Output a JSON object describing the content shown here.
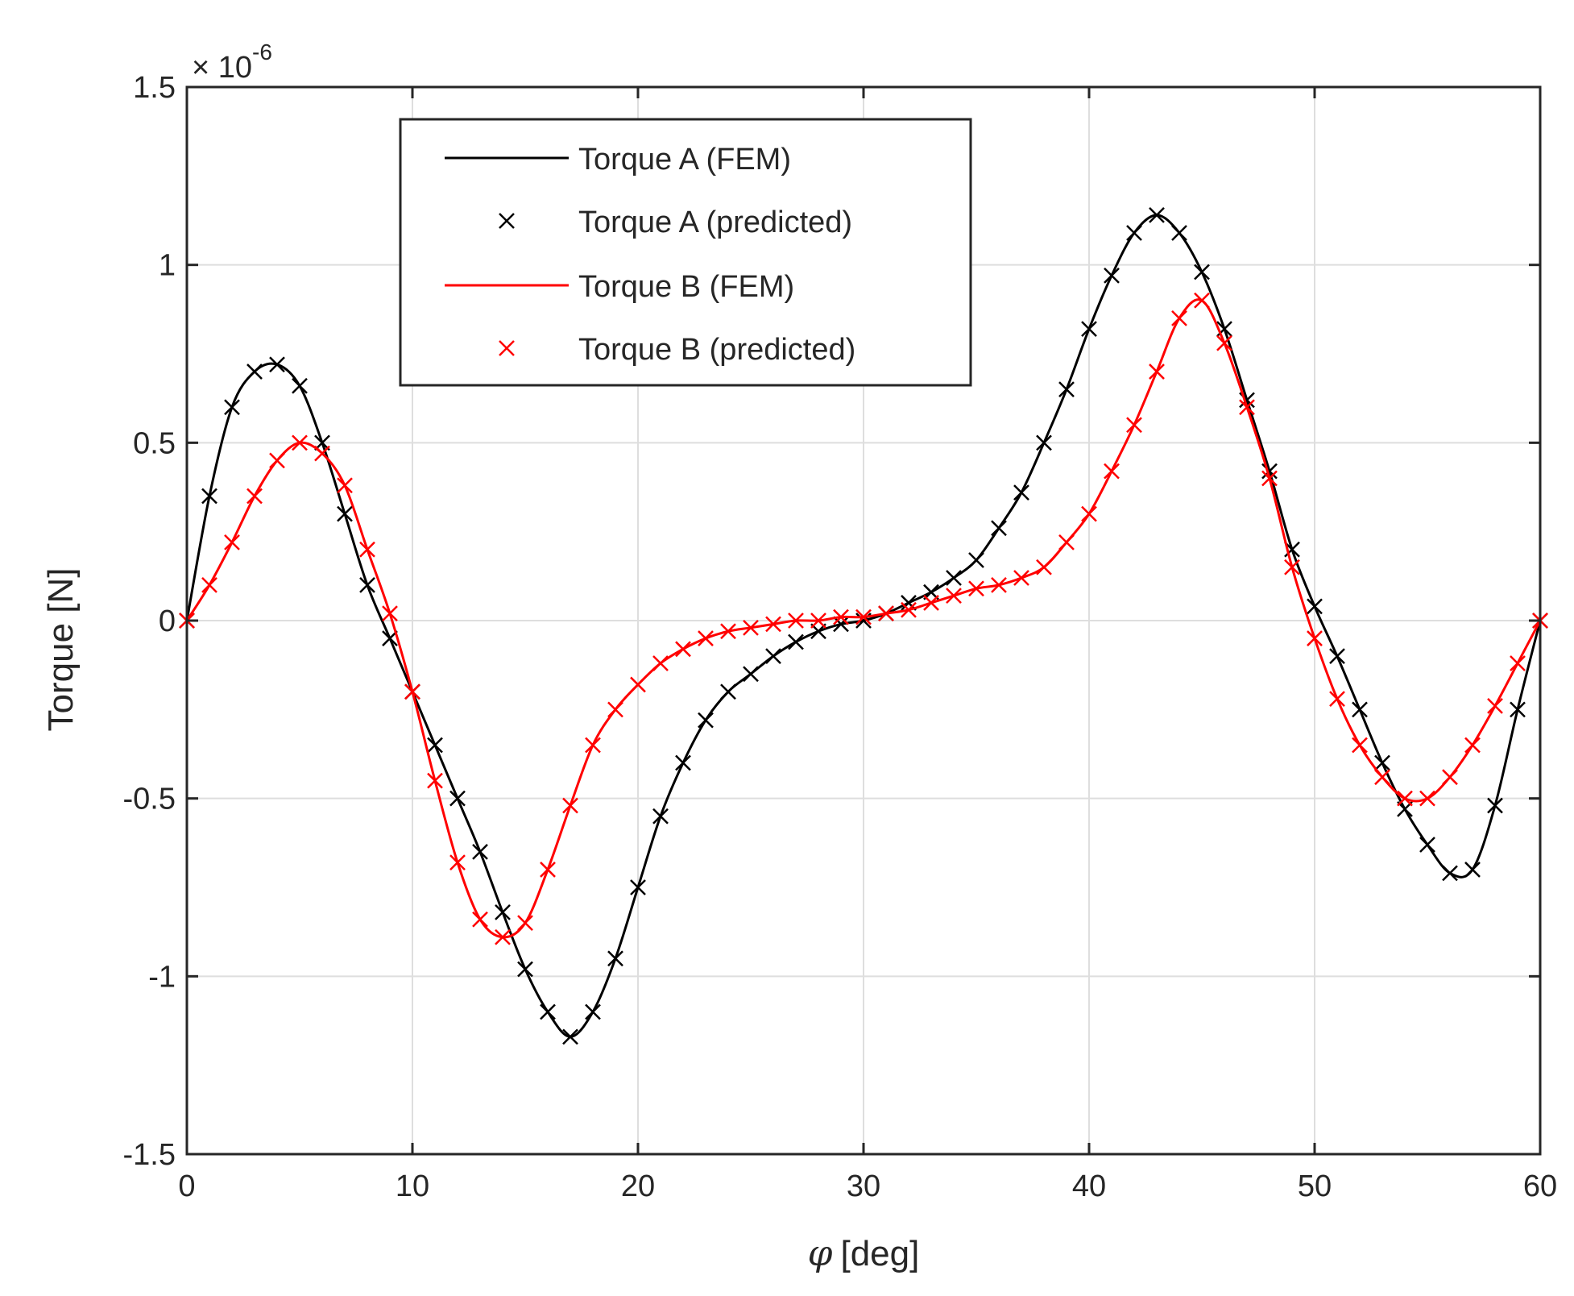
{
  "chart_data": {
    "type": "line",
    "title": "",
    "xlabel_symbol": "φ",
    "xlabel_unit": "[deg]",
    "ylabel": "Torque [N]",
    "y_scale_label": "× 10",
    "y_scale_exponent": "-6",
    "xlim": [
      0,
      60
    ],
    "ylim": [
      -1.5,
      1.5
    ],
    "grid": true,
    "legend_position": "top-left",
    "x_ticks": [
      0,
      10,
      20,
      30,
      40,
      50,
      60
    ],
    "x_tick_labels": [
      "0",
      "10",
      "20",
      "30",
      "40",
      "50",
      "60"
    ],
    "y_ticks": [
      -1.5,
      -1,
      -0.5,
      0,
      0.5,
      1,
      1.5
    ],
    "y_tick_labels": [
      "-1.5",
      "-1",
      "-0.5",
      "0",
      "0.5",
      "1",
      "1.5"
    ],
    "x": [
      0,
      1,
      2,
      3,
      4,
      5,
      6,
      7,
      8,
      9,
      10,
      11,
      12,
      13,
      14,
      15,
      16,
      17,
      18,
      19,
      20,
      21,
      22,
      23,
      24,
      25,
      26,
      27,
      28,
      29,
      30,
      31,
      32,
      33,
      34,
      35,
      36,
      37,
      38,
      39,
      40,
      41,
      42,
      43,
      44,
      45,
      46,
      47,
      48,
      49,
      50,
      51,
      52,
      53,
      54,
      55,
      56,
      57,
      58,
      59,
      60
    ],
    "series": [
      {
        "name": "Torque A (FEM)",
        "color": "#000000",
        "style": "line",
        "values": [
          0,
          0.35,
          0.6,
          0.7,
          0.72,
          0.66,
          0.5,
          0.3,
          0.1,
          -0.05,
          -0.2,
          -0.35,
          -0.5,
          -0.65,
          -0.82,
          -0.98,
          -1.1,
          -1.17,
          -1.1,
          -0.95,
          -0.75,
          -0.55,
          -0.4,
          -0.28,
          -0.2,
          -0.15,
          -0.1,
          -0.06,
          -0.03,
          -0.01,
          0,
          0.02,
          0.05,
          0.08,
          0.12,
          0.17,
          0.26,
          0.36,
          0.5,
          0.65,
          0.82,
          0.97,
          1.09,
          1.14,
          1.09,
          0.98,
          0.82,
          0.62,
          0.42,
          0.2,
          0.04,
          -0.1,
          -0.25,
          -0.4,
          -0.53,
          -0.63,
          -0.71,
          -0.7,
          -0.52,
          -0.25,
          0
        ]
      },
      {
        "name": "Torque A (predicted)",
        "color": "#000000",
        "style": "marker-x",
        "values": [
          0,
          0.35,
          0.6,
          0.7,
          0.72,
          0.66,
          0.5,
          0.3,
          0.1,
          -0.05,
          -0.2,
          -0.35,
          -0.5,
          -0.65,
          -0.82,
          -0.98,
          -1.1,
          -1.17,
          -1.1,
          -0.95,
          -0.75,
          -0.55,
          -0.4,
          -0.28,
          -0.2,
          -0.15,
          -0.1,
          -0.06,
          -0.03,
          -0.01,
          0,
          0.02,
          0.05,
          0.08,
          0.12,
          0.17,
          0.26,
          0.36,
          0.5,
          0.65,
          0.82,
          0.97,
          1.09,
          1.14,
          1.09,
          0.98,
          0.82,
          0.62,
          0.42,
          0.2,
          0.04,
          -0.1,
          -0.25,
          -0.4,
          -0.53,
          -0.63,
          -0.71,
          -0.7,
          -0.52,
          -0.25,
          0
        ]
      },
      {
        "name": "Torque B (FEM)",
        "color": "#ff0000",
        "style": "line",
        "values": [
          0,
          0.1,
          0.22,
          0.35,
          0.45,
          0.5,
          0.47,
          0.38,
          0.2,
          0.02,
          -0.2,
          -0.45,
          -0.68,
          -0.84,
          -0.89,
          -0.85,
          -0.7,
          -0.52,
          -0.35,
          -0.25,
          -0.18,
          -0.12,
          -0.08,
          -0.05,
          -0.03,
          -0.02,
          -0.01,
          0,
          0,
          0.01,
          0.01,
          0.02,
          0.03,
          0.05,
          0.07,
          0.09,
          0.1,
          0.12,
          0.15,
          0.22,
          0.3,
          0.42,
          0.55,
          0.7,
          0.85,
          0.9,
          0.78,
          0.6,
          0.4,
          0.15,
          -0.05,
          -0.22,
          -0.35,
          -0.44,
          -0.5,
          -0.5,
          -0.44,
          -0.35,
          -0.24,
          -0.12,
          0
        ]
      },
      {
        "name": "Torque B (predicted)",
        "color": "#ff0000",
        "style": "marker-x",
        "values": [
          0,
          0.1,
          0.22,
          0.35,
          0.45,
          0.5,
          0.47,
          0.38,
          0.2,
          0.02,
          -0.2,
          -0.45,
          -0.68,
          -0.84,
          -0.89,
          -0.85,
          -0.7,
          -0.52,
          -0.35,
          -0.25,
          -0.18,
          -0.12,
          -0.08,
          -0.05,
          -0.03,
          -0.02,
          -0.01,
          0,
          0,
          0.01,
          0.01,
          0.02,
          0.03,
          0.05,
          0.07,
          0.09,
          0.1,
          0.12,
          0.15,
          0.22,
          0.3,
          0.42,
          0.55,
          0.7,
          0.85,
          0.9,
          0.78,
          0.6,
          0.4,
          0.15,
          -0.05,
          -0.22,
          -0.35,
          -0.44,
          -0.5,
          -0.5,
          -0.44,
          -0.35,
          -0.24,
          -0.12,
          0
        ]
      }
    ]
  }
}
